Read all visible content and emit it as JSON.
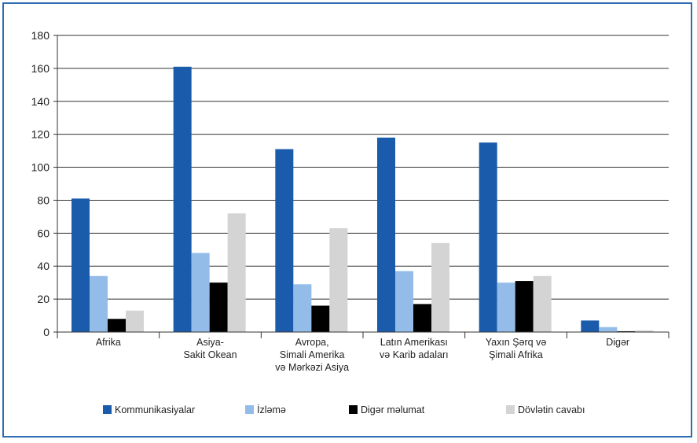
{
  "chart_data": {
    "type": "bar",
    "categories": [
      [
        "Afrika"
      ],
      [
        "Asiya-",
        "Sakit Okean"
      ],
      [
        "Avropa,",
        "Simali Amerika",
        "və Mərkəzi Asiya"
      ],
      [
        "Latın Amerikası",
        "və Karib adaları"
      ],
      [
        "Yaxın Şərq və",
        "Şimali Afrika"
      ],
      [
        "Digər"
      ]
    ],
    "series": [
      {
        "name": "Kommunikasiyalar",
        "color": "#1a5bab",
        "values": [
          81,
          161,
          111,
          118,
          115,
          7
        ]
      },
      {
        "name": "İzləmə",
        "color": "#93bde8",
        "values": [
          34,
          48,
          29,
          37,
          30,
          3
        ]
      },
      {
        "name": "Digər məlumat",
        "color": "#000000",
        "values": [
          8,
          30,
          16,
          17,
          31,
          0.5
        ]
      },
      {
        "name": "Dövlətin cavabı",
        "color": "#d4d4d4",
        "values": [
          13,
          72,
          63,
          54,
          34,
          1
        ]
      }
    ],
    "ylim": [
      0,
      180
    ],
    "yticks": [
      0,
      20,
      40,
      60,
      80,
      100,
      120,
      140,
      160,
      180
    ],
    "grid": true,
    "legend": "bottom"
  }
}
